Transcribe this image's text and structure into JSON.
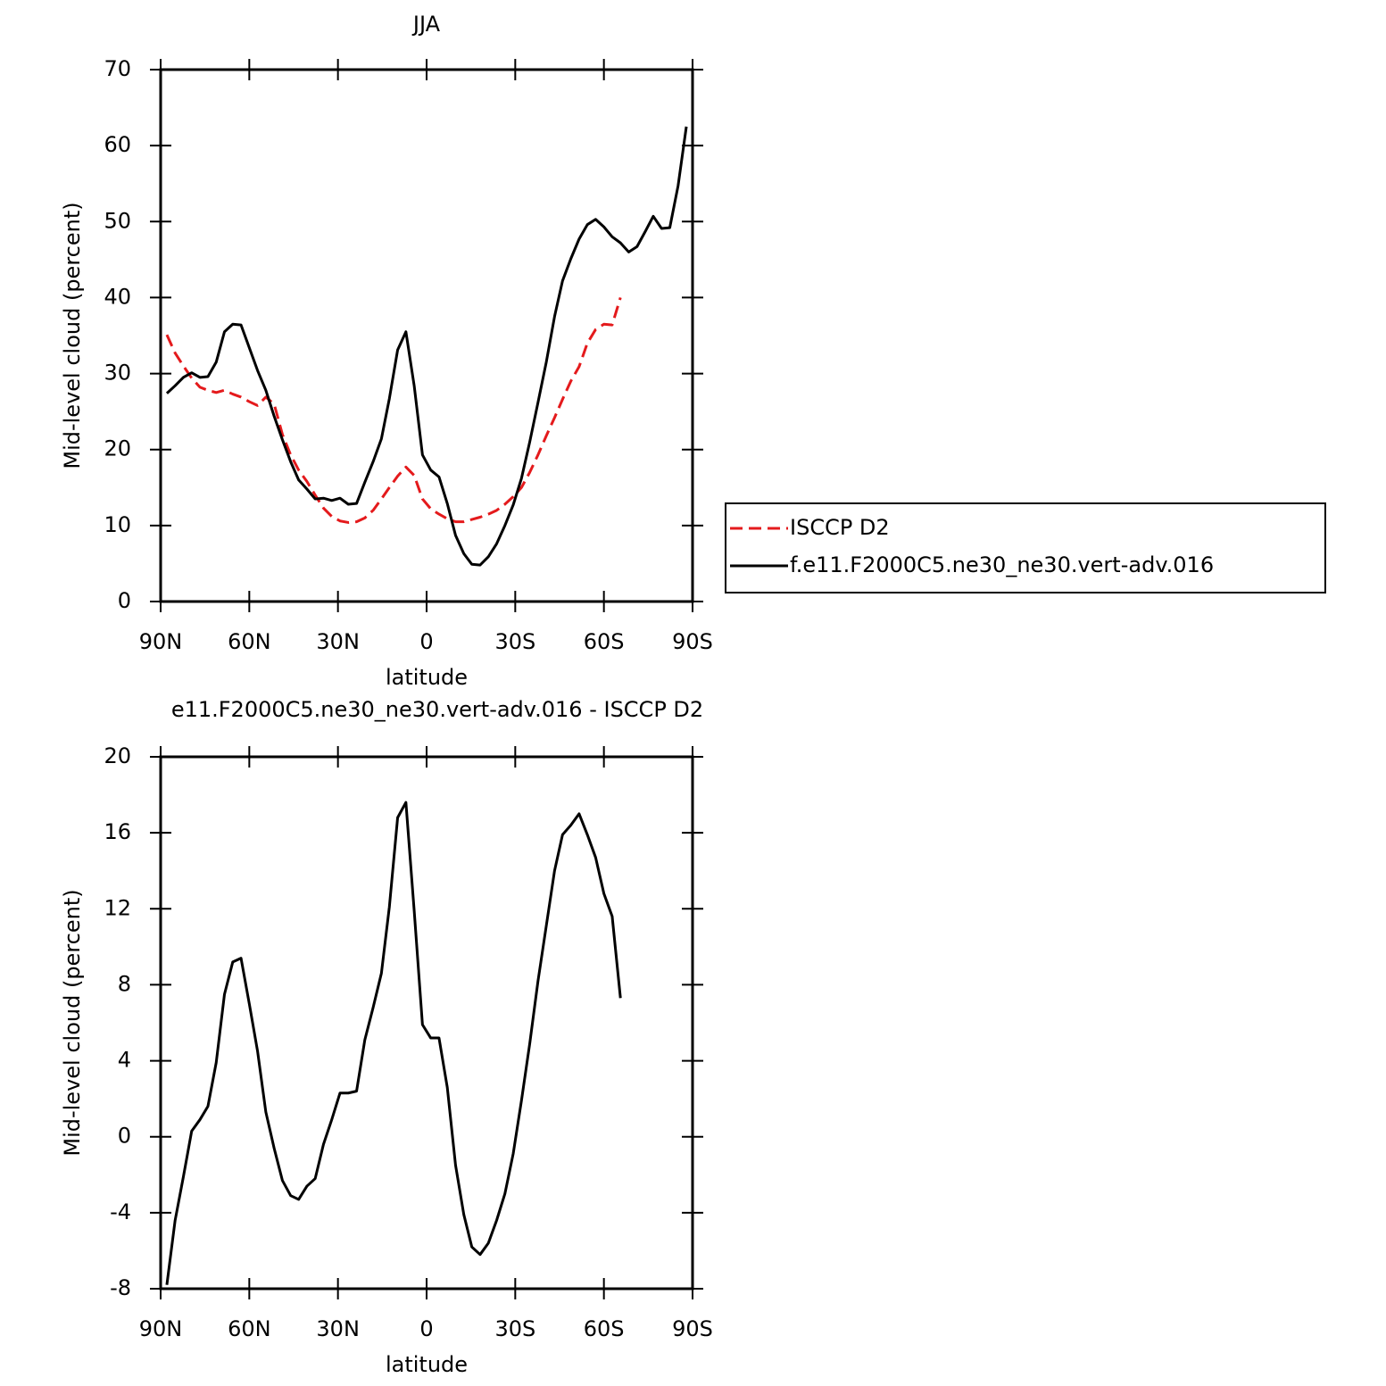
{
  "chart_data": [
    {
      "type": "line",
      "title": "JJA",
      "xlabel": "latitude",
      "ylabel": "Mid-level cloud (percent)",
      "x": [
        87.9,
        85.1,
        82.3,
        79.5,
        76.7,
        74.0,
        71.2,
        68.4,
        65.6,
        62.8,
        60.0,
        57.2,
        54.4,
        51.6,
        48.8,
        46.0,
        43.3,
        40.5,
        37.7,
        34.9,
        32.1,
        29.3,
        26.5,
        23.7,
        20.9,
        18.1,
        15.3,
        12.6,
        9.8,
        7.0,
        4.2,
        1.4,
        -1.4,
        -4.2,
        -7.0,
        -9.8,
        -12.6,
        -15.3,
        -18.1,
        -20.9,
        -23.7,
        -26.5,
        -29.3,
        -32.1,
        -34.9,
        -37.7,
        -40.5,
        -43.3,
        -46.0,
        -48.8,
        -51.6,
        -54.4,
        -57.2,
        -60.0,
        -62.8,
        -65.6,
        -68.4,
        -71.2,
        -74.0,
        -76.7,
        -79.5,
        -82.3,
        -85.1,
        -87.9
      ],
      "series": [
        {
          "name": "ISCCP D2",
          "color": "#e41a1c",
          "line_style": "dashed",
          "values": [
            35.1,
            32.7,
            31.0,
            29.4,
            28.2,
            27.8,
            27.5,
            27.8,
            27.3,
            26.9,
            26.3,
            25.8,
            26.9,
            26.0,
            22.0,
            19.3,
            17.3,
            15.8,
            14.0,
            12.3,
            11.2,
            10.6,
            10.4,
            10.5,
            11.0,
            12.0,
            13.5,
            15.0,
            16.5,
            17.7,
            16.6,
            13.5,
            12.2,
            11.5,
            10.9,
            10.5,
            10.5,
            10.8,
            11.1,
            11.5,
            12.0,
            12.8,
            13.8,
            15.0,
            17.0,
            19.3,
            21.8,
            24.2,
            26.6,
            29.0,
            30.9,
            34.0,
            35.8,
            36.5,
            36.4,
            40.0,
            null,
            null,
            null,
            null,
            null,
            null,
            null,
            null
          ]
        },
        {
          "name": "f.e11.F2000C5.ne30_ne30.vert-adv.016",
          "color": "#000000",
          "line_style": "solid",
          "values": [
            27.4,
            28.4,
            29.5,
            30.1,
            29.5,
            29.6,
            31.5,
            35.5,
            36.5,
            36.4,
            33.4,
            30.4,
            27.8,
            24.4,
            21.3,
            18.4,
            16.0,
            14.8,
            13.5,
            13.6,
            13.3,
            13.6,
            12.8,
            12.9,
            15.7,
            18.4,
            21.4,
            26.7,
            33.1,
            35.5,
            28.4,
            19.3,
            17.3,
            16.4,
            12.9,
            8.7,
            6.3,
            4.9,
            4.8,
            5.9,
            7.6,
            10.0,
            12.7,
            16.2,
            21.0,
            26.2,
            31.5,
            37.5,
            42.2,
            45.1,
            47.7,
            49.6,
            50.3,
            49.3,
            48.0,
            47.2,
            46.0,
            46.7,
            48.7,
            50.7,
            49.1,
            49.2,
            54.7,
            62.5
          ]
        }
      ],
      "xlim": [
        90,
        -90
      ],
      "xticks": [
        {
          "value": 90,
          "label": "90N"
        },
        {
          "value": 60,
          "label": "60N"
        },
        {
          "value": 30,
          "label": "30N"
        },
        0,
        {
          "value": -30,
          "label": "30S"
        },
        {
          "value": -60,
          "label": "60S"
        },
        {
          "value": -90,
          "label": "90S"
        }
      ],
      "ylim": [
        0,
        70
      ],
      "yticks": [
        0,
        10,
        20,
        30,
        40,
        50,
        60,
        70
      ],
      "legend": "right"
    },
    {
      "type": "line",
      "title": "e11.F2000C5.ne30_ne30.vert-adv.016 - ISCCP D2",
      "xlabel": "latitude",
      "ylabel": "Mid-level cloud (percent)",
      "x": [
        87.9,
        85.1,
        82.3,
        79.5,
        76.7,
        74.0,
        71.2,
        68.4,
        65.6,
        62.8,
        60.0,
        57.2,
        54.4,
        51.6,
        48.8,
        46.0,
        43.3,
        40.5,
        37.7,
        34.9,
        32.1,
        29.3,
        26.5,
        23.7,
        20.9,
        18.1,
        15.3,
        12.6,
        9.8,
        7.0,
        4.2,
        1.4,
        -1.4,
        -4.2,
        -7.0,
        -9.8,
        -12.6,
        -15.3,
        -18.1,
        -20.9,
        -23.7,
        -26.5,
        -29.3,
        -32.1,
        -34.9,
        -37.7,
        -40.5,
        -43.3,
        -46.0,
        -48.8,
        -51.6,
        -54.4,
        -57.2,
        -60.0,
        -62.8,
        -65.6
      ],
      "series": [
        {
          "color": "#000000",
          "line_style": "solid",
          "values": [
            -7.8,
            -4.4,
            -2.1,
            0.3,
            0.9,
            1.6,
            3.9,
            7.5,
            9.2,
            9.4,
            7.0,
            4.5,
            1.3,
            -0.6,
            -2.3,
            -3.1,
            -3.3,
            -2.6,
            -2.2,
            -0.4,
            0.9,
            2.3,
            2.3,
            2.4,
            5.1,
            6.8,
            8.6,
            12.1,
            16.8,
            17.6,
            11.9,
            5.9,
            5.2,
            5.2,
            2.6,
            -1.5,
            -4.1,
            -5.8,
            -6.2,
            -5.6,
            -4.4,
            -3.0,
            -0.9,
            1.9,
            4.9,
            8.2,
            11.1,
            14.0,
            15.9,
            16.4,
            17.0,
            15.9,
            14.7,
            12.8,
            11.6,
            7.3
          ]
        }
      ],
      "xlim": [
        90,
        -90
      ],
      "xticks": [
        {
          "value": 90,
          "label": "90N"
        },
        {
          "value": 60,
          "label": "60N"
        },
        {
          "value": 30,
          "label": "30N"
        },
        0,
        {
          "value": -30,
          "label": "30S"
        },
        {
          "value": -60,
          "label": "60S"
        },
        {
          "value": -90,
          "label": "90S"
        }
      ],
      "ylim": [
        -8,
        20
      ],
      "yticks": [
        -8,
        -4,
        0,
        4,
        8,
        12,
        16,
        20
      ]
    }
  ]
}
